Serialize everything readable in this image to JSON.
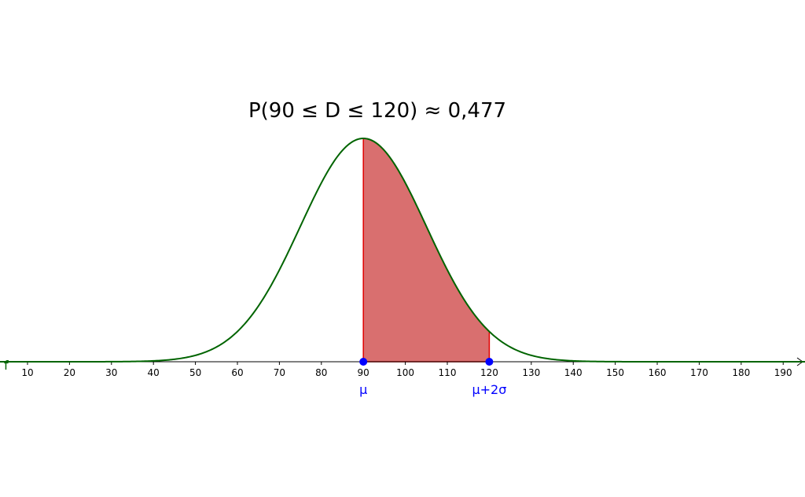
{
  "chart_data": {
    "type": "normal",
    "title": "P(90 ≤ D ≤ 120) ≈ 0,477",
    "mu": 90,
    "sigma": 15,
    "function_label": "f",
    "curve_color": "#006400",
    "shade_color": "#d96f6f",
    "shade": [
      90,
      120
    ],
    "points": {
      "x": [
        90,
        120
      ],
      "labels": [
        "μ",
        "μ+2σ"
      ],
      "color": "#0000ff"
    },
    "xlim": [
      3.45,
      195.2
    ],
    "xticks": [
      10,
      20,
      30,
      40,
      50,
      60,
      70,
      80,
      90,
      100,
      110,
      120,
      130,
      140,
      150,
      160,
      170,
      180,
      190
    ]
  }
}
